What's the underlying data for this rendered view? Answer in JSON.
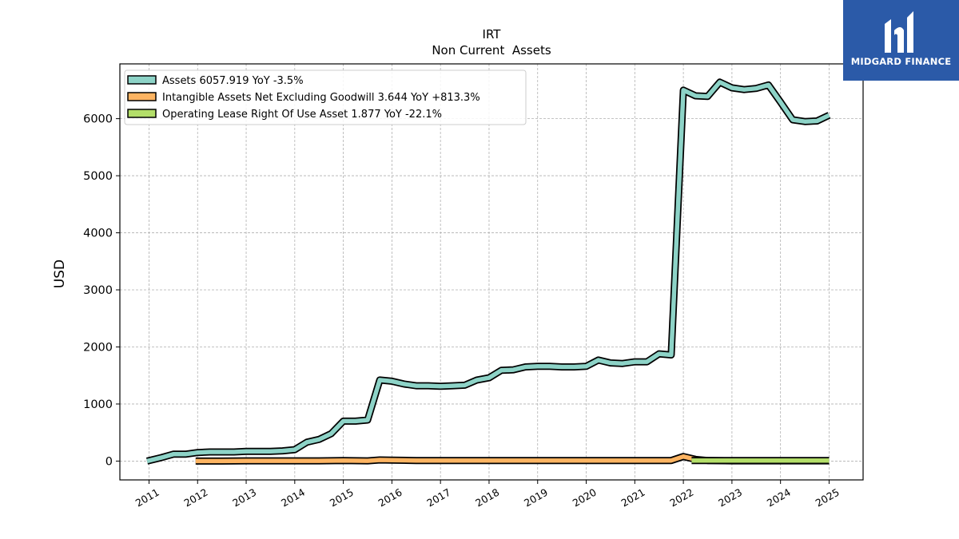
{
  "brand": {
    "name": "MIDGARD FINANCE",
    "bg_color": "#2b5aa8"
  },
  "chart_data": {
    "type": "line",
    "title": "IRT",
    "subtitle": "Non Current  Assets",
    "xlabel": "",
    "ylabel": "USD",
    "xlim": [
      2010.4,
      2025.7
    ],
    "ylim": [
      -330,
      6960
    ],
    "x_ticks": [
      2011,
      2012,
      2013,
      2014,
      2015,
      2016,
      2017,
      2018,
      2019,
      2020,
      2021,
      2022,
      2023,
      2024,
      2025
    ],
    "x_tick_labels": [
      "2011",
      "2012",
      "2013",
      "2014",
      "2015",
      "2016",
      "2017",
      "2018",
      "2019",
      "2020",
      "2021",
      "2022",
      "2023",
      "2024",
      "2025"
    ],
    "y_ticks": [
      0,
      1000,
      2000,
      3000,
      4000,
      5000,
      6000
    ],
    "y_tick_labels": [
      "0",
      "1000",
      "2000",
      "3000",
      "4000",
      "5000",
      "6000"
    ],
    "grid": true,
    "legend_position": "top-left",
    "series": [
      {
        "name": "Assets",
        "legend_label": "Assets  6057.919 YoY -3.5%",
        "color": "#8dd3c7",
        "x": [
          2010.96,
          2011.25,
          2011.5,
          2011.75,
          2012.0,
          2012.25,
          2012.5,
          2012.75,
          2013.0,
          2013.25,
          2013.5,
          2013.75,
          2014.0,
          2014.25,
          2014.5,
          2014.75,
          2015.0,
          2015.25,
          2015.5,
          2015.75,
          2016.0,
          2016.25,
          2016.5,
          2016.75,
          2017.0,
          2017.25,
          2017.5,
          2017.75,
          2018.0,
          2018.25,
          2018.5,
          2018.75,
          2019.0,
          2019.25,
          2019.5,
          2019.75,
          2020.0,
          2020.25,
          2020.5,
          2020.75,
          2021.0,
          2021.25,
          2021.5,
          2021.75,
          2022.0,
          2022.25,
          2022.5,
          2022.75,
          2023.0,
          2023.25,
          2023.5,
          2023.75,
          2024.0,
          2024.25,
          2024.5,
          2024.75,
          2025.0
        ],
        "values": [
          0,
          60,
          120,
          120,
          150,
          160,
          160,
          160,
          170,
          170,
          170,
          180,
          200,
          330,
          380,
          480,
          700,
          700,
          720,
          1420,
          1400,
          1350,
          1320,
          1320,
          1310,
          1320,
          1330,
          1420,
          1460,
          1590,
          1600,
          1650,
          1660,
          1660,
          1650,
          1650,
          1660,
          1770,
          1720,
          1710,
          1740,
          1740,
          1880,
          1860,
          6500,
          6400,
          6390,
          6640,
          6540,
          6510,
          6530,
          6590,
          6290,
          5980,
          5950,
          5960,
          6060
        ]
      },
      {
        "name": "Intangible Assets Net Excluding Goodwill",
        "legend_label": "Intangible Assets Net Excluding Goodwill  3.644 YoY +813.3%",
        "color": "#fdb462",
        "x": [
          2011.96,
          2012.5,
          2013.0,
          2013.5,
          2014.0,
          2014.5,
          2015.0,
          2015.5,
          2015.75,
          2016.0,
          2016.5,
          2017.0,
          2017.5,
          2018.0,
          2018.5,
          2019.0,
          2019.5,
          2020.0,
          2020.5,
          2021.0,
          2021.5,
          2021.75,
          2022.0,
          2022.25,
          2022.5,
          2023.0,
          2023.5,
          2024.0,
          2024.5,
          2025.0
        ],
        "values": [
          0,
          0,
          5,
          5,
          5,
          5,
          10,
          5,
          20,
          15,
          10,
          10,
          10,
          10,
          10,
          10,
          10,
          10,
          10,
          10,
          10,
          10,
          80,
          30,
          10,
          5,
          5,
          5,
          5,
          5
        ]
      },
      {
        "name": "Operating Lease Right Of Use Asset",
        "legend_label": "Operating Lease Right Of Use Asset  1.877 YoY -22.1%",
        "color": "#b3de69",
        "x": [
          2022.17,
          2022.5,
          2023.0,
          2023.5,
          2024.0,
          2024.5,
          2025.0
        ],
        "values": [
          10,
          10,
          10,
          10,
          10,
          10,
          10
        ]
      }
    ]
  }
}
